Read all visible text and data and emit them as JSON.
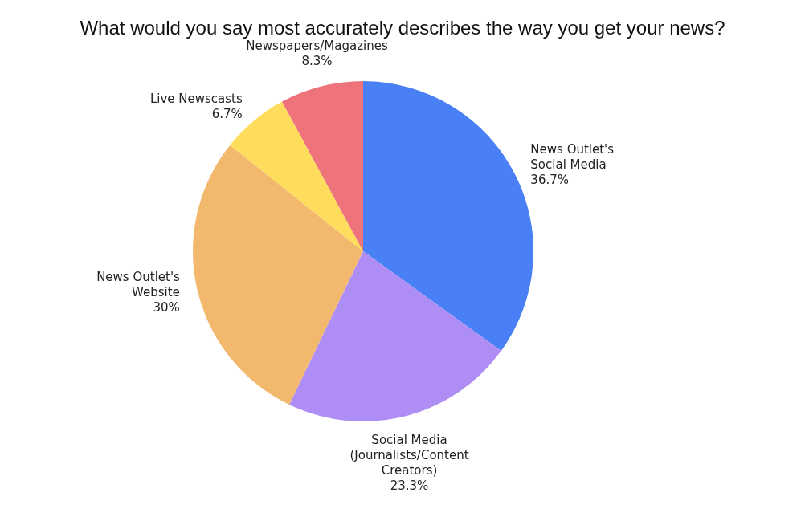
{
  "chart_data": {
    "type": "pie",
    "title": "What would you say most accurately describes the way you get your news?",
    "categories": [
      "News Outlet's Social Media",
      "Social Media (Journalists/Content Creators)",
      "News Outlet's Website",
      "Live Newscasts",
      "Newspapers/Magazines"
    ],
    "values": [
      36.7,
      23.3,
      30,
      6.7,
      8.3
    ],
    "value_labels": [
      "36.7%",
      "23.3%",
      "30%",
      "6.7%",
      "8.3%"
    ],
    "colors": [
      "#4a80f5",
      "#ae8df4",
      "#f2b96e",
      "#fedd5c",
      "#ef737b"
    ],
    "legend": false
  }
}
